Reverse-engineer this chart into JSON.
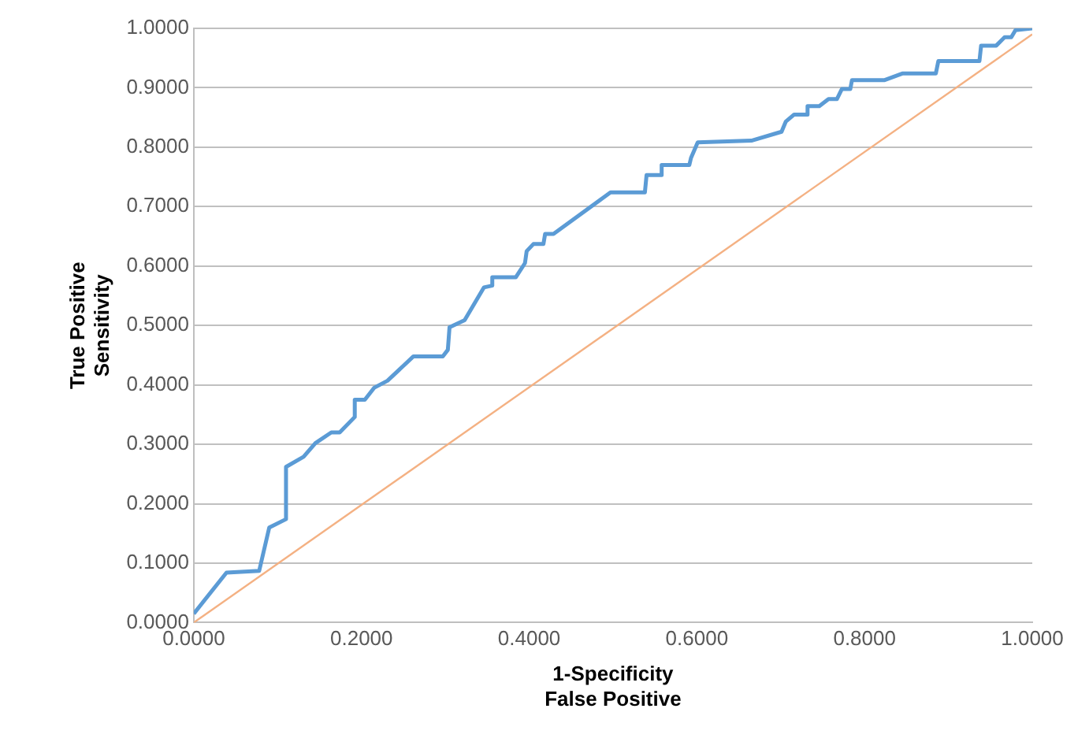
{
  "chart_data": {
    "type": "line",
    "xlabel": "1-Specificity\nFalse Positive",
    "ylabel": "True Positive\nSensitivity",
    "xlim": [
      0,
      1
    ],
    "ylim": [
      0,
      1
    ],
    "xticks": [
      {
        "value": 0,
        "label": "0.0000"
      },
      {
        "value": 0.2,
        "label": "0.2000"
      },
      {
        "value": 0.4,
        "label": "0.4000"
      },
      {
        "value": 0.6,
        "label": "0.6000"
      },
      {
        "value": 0.8,
        "label": "0.8000"
      },
      {
        "value": 1,
        "label": "1.0000"
      }
    ],
    "yticks": [
      {
        "value": 0,
        "label": "0.0000"
      },
      {
        "value": 0.1,
        "label": "0.1000"
      },
      {
        "value": 0.2,
        "label": "0.2000"
      },
      {
        "value": 0.3,
        "label": "0.3000"
      },
      {
        "value": 0.4,
        "label": "0.4000"
      },
      {
        "value": 0.5,
        "label": "0.5000"
      },
      {
        "value": 0.6,
        "label": "0.6000"
      },
      {
        "value": 0.7,
        "label": "0.7000"
      },
      {
        "value": 0.8,
        "label": "0.8000"
      },
      {
        "value": 0.9,
        "label": "0.9000"
      },
      {
        "value": 1,
        "label": "1.0000"
      }
    ],
    "grid": "y",
    "legend": false,
    "marker": "none",
    "line_style": "solid",
    "series": [
      {
        "type": "line",
        "color": "#5b9bd5",
        "x": [
          0,
          0.039,
          0.078,
          0.09,
          0.11,
          0.11,
          0.131,
          0.145,
          0.164,
          0.174,
          0.192,
          0.192,
          0.204,
          0.215,
          0.231,
          0.262,
          0.297,
          0.303,
          0.305,
          0.323,
          0.346,
          0.356,
          0.356,
          0.384,
          0.395,
          0.397,
          0.405,
          0.417,
          0.419,
          0.429,
          0.497,
          0.538,
          0.54,
          0.558,
          0.558,
          0.591,
          0.593,
          0.601,
          0.665,
          0.701,
          0.706,
          0.716,
          0.732,
          0.732,
          0.746,
          0.757,
          0.767,
          0.773,
          0.783,
          0.785,
          0.824,
          0.845,
          0.885,
          0.888,
          0.937,
          0.939,
          0.957,
          0.967,
          0.975,
          0.98,
          1
        ],
        "values": [
          0.015,
          0.084,
          0.087,
          0.16,
          0.174,
          0.262,
          0.279,
          0.302,
          0.32,
          0.32,
          0.346,
          0.375,
          0.375,
          0.395,
          0.407,
          0.448,
          0.448,
          0.459,
          0.497,
          0.509,
          0.564,
          0.567,
          0.581,
          0.581,
          0.605,
          0.625,
          0.637,
          0.637,
          0.654,
          0.654,
          0.724,
          0.724,
          0.753,
          0.753,
          0.77,
          0.77,
          0.782,
          0.808,
          0.811,
          0.826,
          0.843,
          0.855,
          0.855,
          0.869,
          0.869,
          0.881,
          0.881,
          0.898,
          0.898,
          0.913,
          0.913,
          0.924,
          0.924,
          0.945,
          0.945,
          0.971,
          0.971,
          0.985,
          0.985,
          0.997,
          1
        ]
      },
      {
        "type": "line",
        "color": "#f4b183",
        "x": [
          0,
          1
        ],
        "values": [
          0,
          0.99
        ]
      }
    ]
  }
}
